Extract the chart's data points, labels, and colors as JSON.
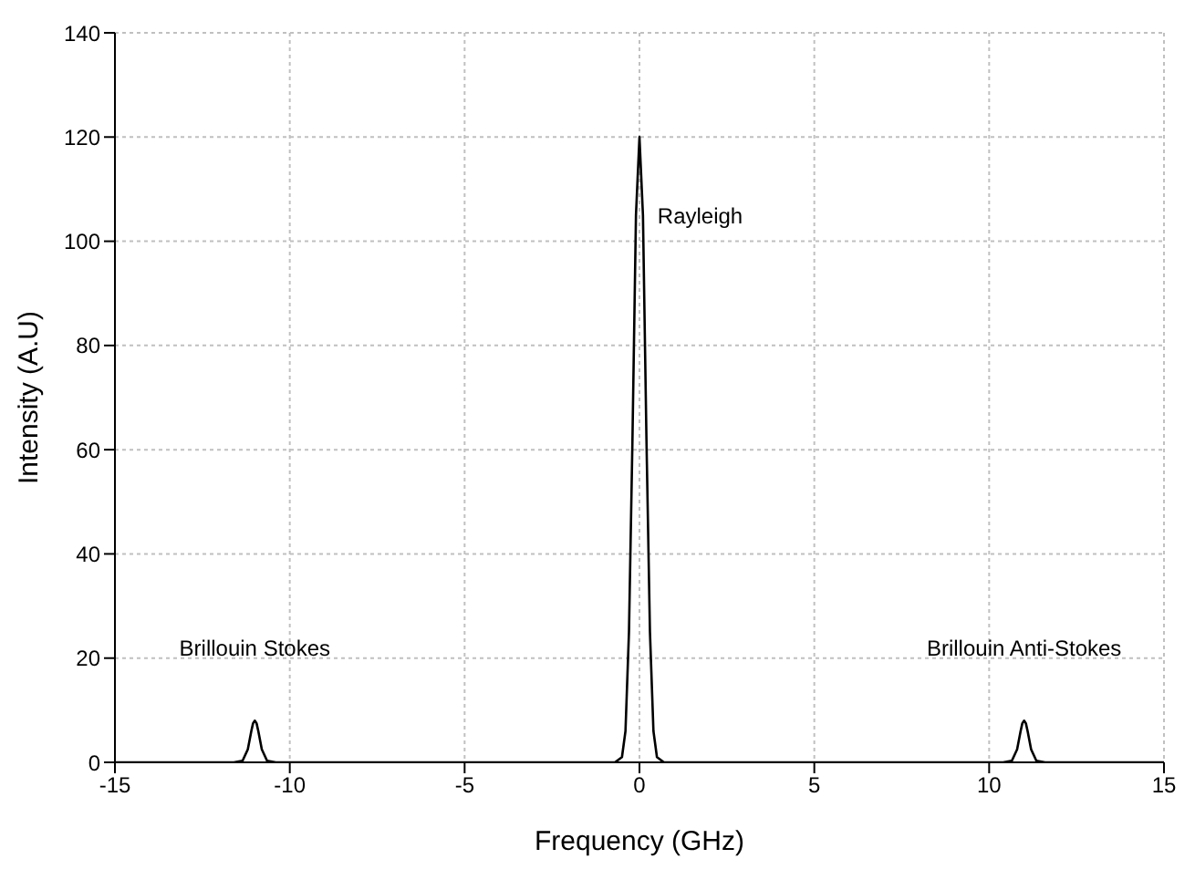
{
  "chart_data": {
    "type": "line",
    "xlabel": "Frequency (GHz)",
    "ylabel": "Intensity (A.U)",
    "x": [
      -15,
      -11.6,
      -11.35,
      -11.2,
      -11.1,
      -11.05,
      -11,
      -10.95,
      -10.9,
      -10.8,
      -10.65,
      -10.4,
      -0.7,
      -0.5,
      -0.4,
      -0.3,
      -0.2,
      -0.1,
      0,
      0.1,
      0.2,
      0.3,
      0.4,
      0.5,
      0.7,
      10.4,
      10.65,
      10.8,
      10.9,
      10.95,
      11,
      11.05,
      11.1,
      11.2,
      11.35,
      11.6,
      15
    ],
    "series": [
      {
        "color": "#000000",
        "values": [
          0,
          0,
          0.3,
          2.5,
          6,
          7.5,
          8,
          7.5,
          6,
          2.5,
          0.3,
          0,
          0,
          1,
          6,
          25,
          62,
          105,
          120,
          105,
          62,
          25,
          6,
          1,
          0,
          0,
          0.3,
          2.5,
          6,
          7.5,
          8,
          7.5,
          6,
          2.5,
          0.3,
          0,
          0
        ]
      }
    ],
    "xlim": [
      -15,
      15
    ],
    "xticks": [
      -15,
      -10,
      -5,
      0,
      5,
      10,
      15
    ],
    "ylim": [
      0,
      140
    ],
    "yticks": [
      0,
      20,
      40,
      60,
      80,
      100,
      120,
      140
    ],
    "grid": true,
    "marker": "none",
    "line_style": "solid",
    "annotations": [
      {
        "text": "Rayleigh",
        "x": 0.1,
        "y": 105
      },
      {
        "text": "Brillouin Stokes",
        "x": -11,
        "y": 8
      },
      {
        "text": "Brillouin Anti-Stokes",
        "x": 11,
        "y": 8
      }
    ]
  }
}
